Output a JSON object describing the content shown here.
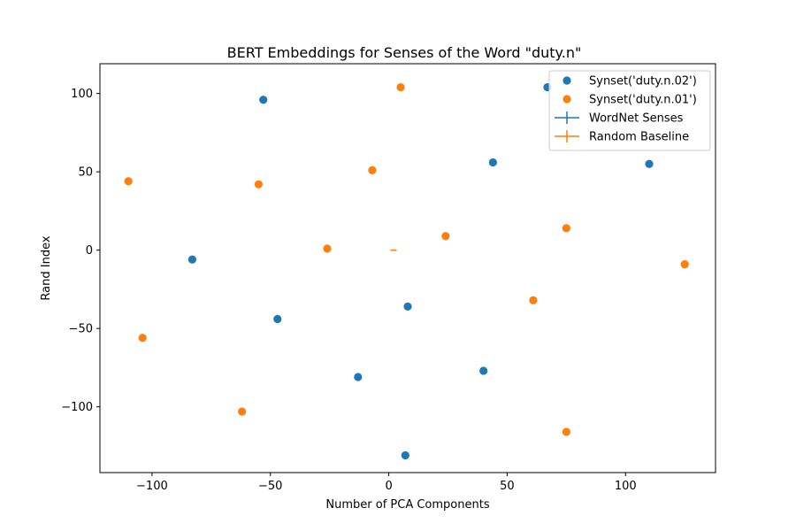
{
  "chart_data": {
    "type": "scatter",
    "title": "BERT Embeddings for Senses of the Word \"duty.n\"",
    "xlabel": "Number of PCA Components",
    "ylabel": "Rand Index",
    "xlim": [
      -122,
      138
    ],
    "ylim": [
      -142,
      119
    ],
    "xticks": [
      -100,
      -50,
      0,
      50,
      100
    ],
    "yticks": [
      -100,
      -50,
      0,
      50,
      100
    ],
    "xtick_labels": [
      "−100",
      "−50",
      "0",
      "50",
      "100"
    ],
    "ytick_labels": [
      "−100",
      "−50",
      "0",
      "50",
      "100"
    ],
    "grid": false,
    "legend_position": "top-right",
    "series": [
      {
        "name": "Synset('duty.n.02')",
        "kind": "scatter",
        "color": "#1f77b4",
        "points": [
          {
            "x": -53,
            "y": 96
          },
          {
            "x": 67,
            "y": 104
          },
          {
            "x": 44,
            "y": 56
          },
          {
            "x": 110,
            "y": 55
          },
          {
            "x": -83,
            "y": -6
          },
          {
            "x": 8,
            "y": -36
          },
          {
            "x": -47,
            "y": -44
          },
          {
            "x": -13,
            "y": -81
          },
          {
            "x": 40,
            "y": -77
          },
          {
            "x": 7,
            "y": -131
          }
        ]
      },
      {
        "name": "Synset('duty.n.01')",
        "kind": "scatter",
        "color": "#ff7f0e",
        "points": [
          {
            "x": 5,
            "y": 104
          },
          {
            "x": -110,
            "y": 44
          },
          {
            "x": -55,
            "y": 42
          },
          {
            "x": -7,
            "y": 51
          },
          {
            "x": -26,
            "y": 1
          },
          {
            "x": 24,
            "y": 9
          },
          {
            "x": 75,
            "y": 14
          },
          {
            "x": 125,
            "y": -9
          },
          {
            "x": 61,
            "y": -32
          },
          {
            "x": -104,
            "y": -56
          },
          {
            "x": -62,
            "y": -103
          },
          {
            "x": 75,
            "y": -116
          }
        ]
      },
      {
        "name": "WordNet Senses",
        "kind": "errorbar",
        "color": "#1f77b4",
        "points": []
      },
      {
        "name": "Random Baseline",
        "kind": "errorbar",
        "color": "#ff7f0e",
        "points": [
          {
            "x": 2,
            "y": 0
          }
        ]
      }
    ]
  }
}
